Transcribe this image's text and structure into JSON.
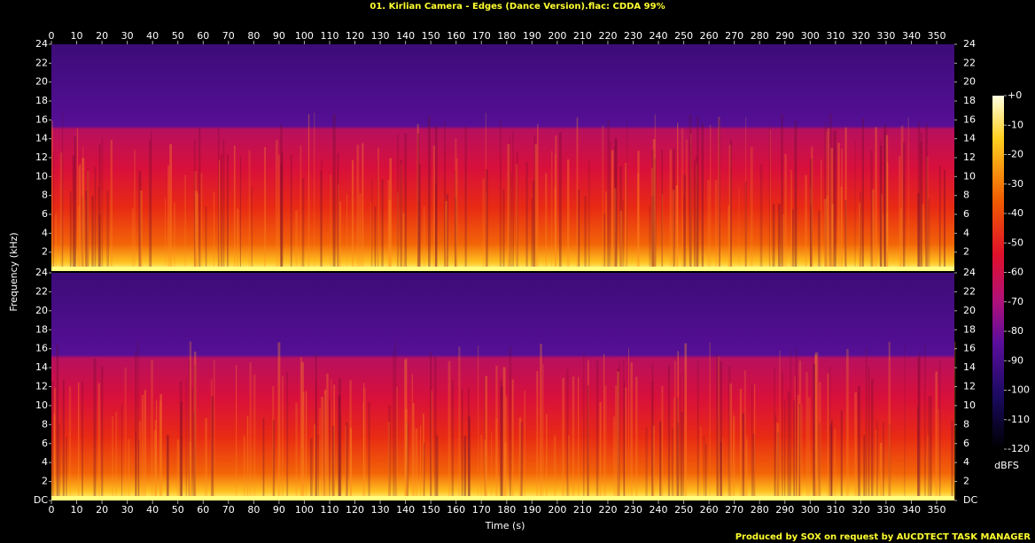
{
  "chart_data": {
    "type": "spectrogram",
    "title": "01. Kirlian Camera - Edges (Dance Version).flac: CDDA 99%",
    "xlabel": "Time (s)",
    "ylabel": "Frequency (kHz)",
    "xlim": [
      0,
      357
    ],
    "xticks": [
      0,
      10,
      20,
      30,
      40,
      50,
      60,
      70,
      80,
      90,
      100,
      110,
      120,
      130,
      140,
      150,
      160,
      170,
      180,
      190,
      200,
      210,
      220,
      230,
      240,
      250,
      260,
      270,
      280,
      290,
      300,
      310,
      320,
      330,
      340,
      350
    ],
    "channels": [
      {
        "ylim": [
          0,
          24
        ],
        "yticks": [
          2,
          4,
          6,
          8,
          10,
          12,
          14,
          16,
          18,
          20,
          22,
          24
        ]
      },
      {
        "ylim": [
          0,
          24
        ],
        "yticks": [
          {
            "value": 0,
            "label": "DC"
          },
          2,
          4,
          6,
          8,
          10,
          12,
          14,
          16,
          18,
          20,
          22,
          24
        ]
      }
    ],
    "colorbar": {
      "label": "dBFS",
      "lim": [
        -120,
        0
      ],
      "ticks": [
        {
          "value": 0,
          "label": "+0"
        },
        -10,
        -20,
        -30,
        -40,
        -50,
        -60,
        -70,
        -80,
        -90,
        -100,
        -110,
        -120
      ]
    },
    "footer": "Produced by SOX on request by AUCDTECT TASK MANAGER"
  }
}
